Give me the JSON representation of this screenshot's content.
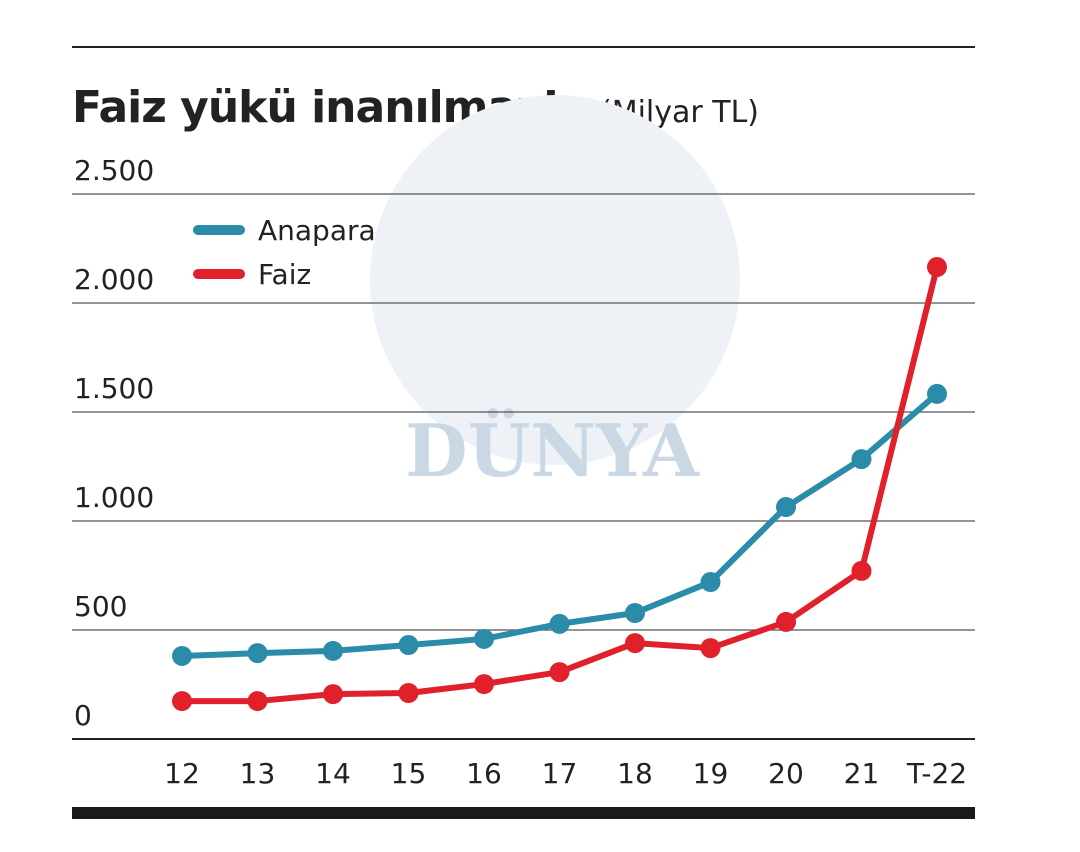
{
  "chart_data": {
    "type": "line",
    "title": "Faiz yükü inanılmaz!",
    "subtitle": "(Milyar TL)",
    "watermark": "DÜNYA",
    "categories": [
      "12",
      "13",
      "14",
      "15",
      "16",
      "17",
      "18",
      "19",
      "20",
      "21",
      "T-22"
    ],
    "series": [
      {
        "name": "Anapara",
        "color": "#2a8ca8",
        "values": [
          381,
          394,
          404,
          431,
          459,
          528,
          578,
          720,
          1064,
          1284,
          1583
        ]
      },
      {
        "name": "Faiz",
        "color": "#e0202a",
        "values": [
          174,
          174,
          206,
          211,
          252,
          307,
          440,
          417,
          537,
          771,
          2165
        ]
      }
    ],
    "ylim": [
      0,
      2500
    ],
    "yticks": [
      0,
      500,
      {
        "value": 1000,
        "label": "1.000"
      },
      {
        "value": 1500,
        "label": "1.500"
      },
      {
        "value": 2000,
        "label": "2.000"
      },
      {
        "value": 2500,
        "label": "2.500"
      }
    ],
    "grid": true,
    "legend": "upper left"
  }
}
